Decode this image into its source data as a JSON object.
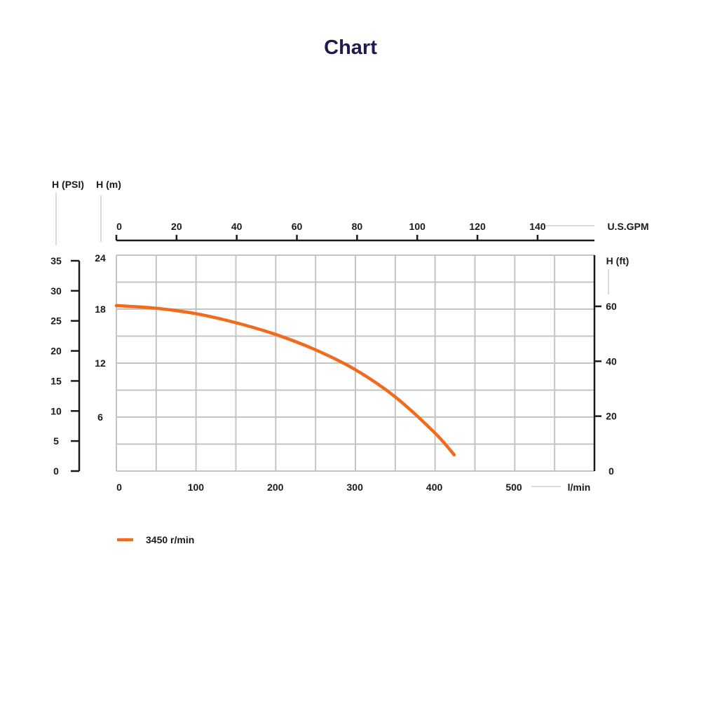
{
  "title": "Chart",
  "chart_data": {
    "type": "line",
    "x_label": "l/min",
    "x_ticks": [
      0,
      100,
      200,
      300,
      400,
      500
    ],
    "x_range": [
      0,
      600
    ],
    "x2_label": "U.S.GPM",
    "x2_ticks": [
      0,
      20,
      40,
      60,
      80,
      100,
      120,
      140
    ],
    "x2_range_per_lpm": 0.2642,
    "y_m_label": "H (m)",
    "y_m_ticks": [
      6,
      12,
      18,
      24
    ],
    "y_m_range": [
      0,
      24
    ],
    "y_psi_label": "H (PSI)",
    "y_psi_ticks": [
      0,
      5,
      10,
      15,
      20,
      25,
      30,
      35
    ],
    "y_ft_label": "H (ft)",
    "y_ft_ticks": [
      0,
      20,
      40,
      60
    ],
    "grid": true,
    "legend_position": "bottom-left",
    "series": [
      {
        "name": "3450 r/min",
        "color": "#f26a1b",
        "x": [
          0,
          50,
          100,
          150,
          200,
          250,
          300,
          350,
          400,
          425
        ],
        "y": [
          18.4,
          18.1,
          17.5,
          16.5,
          15.2,
          13.5,
          11.3,
          8.3,
          4.3,
          1.8
        ]
      }
    ]
  }
}
